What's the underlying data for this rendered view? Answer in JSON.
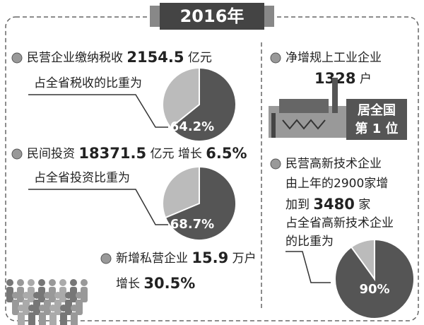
{
  "title": "2016年",
  "tax": {
    "label": "民营企业缴纳税收",
    "value": 2154.5,
    "unit": "亿元",
    "share_title": "占全省税收的比重为",
    "share": 64.2,
    "share_label": "64.2%"
  },
  "investment": {
    "label": "民间投资",
    "value": 18371.5,
    "unit": "亿元",
    "growth_title": "增长",
    "growth": "6.5%",
    "share_title": "占全省投资比重为",
    "share": 68.7,
    "share_label": "68.7%"
  },
  "private": {
    "label": "新增私营企业",
    "value": 15.9,
    "unit": "万户",
    "growth_title": "增长",
    "growth": "30.5%"
  },
  "industry": {
    "label": "净增规上工业企业",
    "value": 1328,
    "unit": "户",
    "rank_line1": "居全国",
    "rank_line2": "第 1 位"
  },
  "hightech": {
    "label": "民营高新技术企业",
    "line2": "由上年的2900家增",
    "line3_prefix": "加到",
    "value": 3480,
    "unit": "家",
    "line4": "占全省高新技术企业",
    "line5": "的比重为",
    "share": 90,
    "share_label": "90%"
  }
}
